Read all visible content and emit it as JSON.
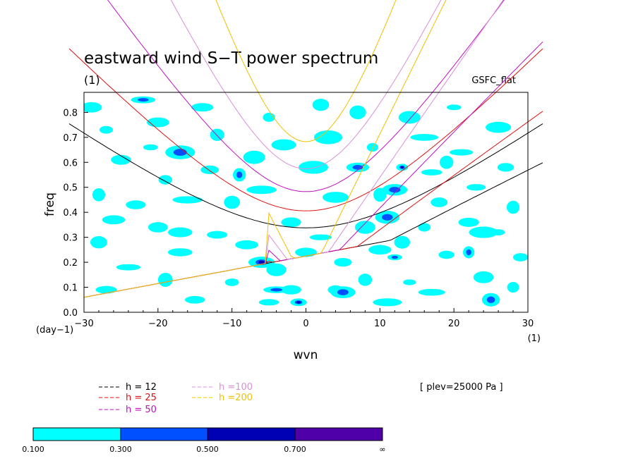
{
  "chart_data": {
    "type": "contour",
    "title": "eastward wind S−T power spectrum",
    "units": "(1)",
    "dataset_label": "GSFC_flat",
    "xlabel": "wvn",
    "x_units": "(1)",
    "ylabel": "freq",
    "y_units": "(day−1)",
    "xlim": [
      -30,
      30
    ],
    "ylim": [
      0,
      0.88
    ],
    "xticks": [
      -30,
      -20,
      -10,
      0,
      10,
      20,
      30
    ],
    "xtick_labels": [
      "−30",
      "−20",
      "−10",
      "0",
      "10",
      "20",
      "30"
    ],
    "yticks": [
      0,
      0.1,
      0.2,
      0.3,
      0.4,
      0.5,
      0.6,
      0.7,
      0.8
    ],
    "ytick_labels": [
      "0.0",
      "0.1",
      "0.2",
      "0.3",
      "0.4",
      "0.5",
      "0.6",
      "0.7",
      "0.8"
    ],
    "annotation": "[ plev=25000 Pa ]",
    "dispersion_curves": [
      {
        "name": "h = 12",
        "h": 12,
        "color": "#000000"
      },
      {
        "name": "h = 25",
        "h": 25,
        "color": "#e01010"
      },
      {
        "name": "h = 50",
        "h": 50,
        "color": "#c010c0"
      },
      {
        "name": "h =100",
        "h": 100,
        "color": "#d890d8"
      },
      {
        "name": "h =200",
        "h": 200,
        "color": "#f0c000"
      }
    ],
    "colorbar": {
      "levels": [
        "0.100",
        "0.300",
        "0.500",
        "0.700",
        "∞"
      ],
      "colors": [
        "#00ffff",
        "#0050ff",
        "#0000b4",
        "#5000a8"
      ]
    },
    "contour_patches": [
      {
        "x": -29,
        "y": 0.82,
        "level": 0
      },
      {
        "x": -27,
        "y": 0.73,
        "level": 0
      },
      {
        "x": -25,
        "y": 0.61,
        "level": 0
      },
      {
        "x": -28,
        "y": 0.47,
        "level": 0
      },
      {
        "x": -26,
        "y": 0.37,
        "level": 0
      },
      {
        "x": -28,
        "y": 0.28,
        "level": 0
      },
      {
        "x": -24,
        "y": 0.18,
        "level": 0
      },
      {
        "x": -27,
        "y": 0.09,
        "level": 0
      },
      {
        "x": -22,
        "y": 0.85,
        "level": 1
      },
      {
        "x": -20,
        "y": 0.76,
        "level": 0
      },
      {
        "x": -21,
        "y": 0.66,
        "level": 0
      },
      {
        "x": -17,
        "y": 0.64,
        "level": 1
      },
      {
        "x": -19,
        "y": 0.53,
        "level": 0
      },
      {
        "x": -16,
        "y": 0.45,
        "level": 0
      },
      {
        "x": -20,
        "y": 0.34,
        "level": 0
      },
      {
        "x": -17,
        "y": 0.24,
        "level": 0
      },
      {
        "x": -19,
        "y": 0.13,
        "level": 0
      },
      {
        "x": -15,
        "y": 0.05,
        "level": 0
      },
      {
        "x": -14,
        "y": 0.82,
        "level": 0
      },
      {
        "x": -12,
        "y": 0.71,
        "level": 0
      },
      {
        "x": -13,
        "y": 0.57,
        "level": 0
      },
      {
        "x": -9,
        "y": 0.55,
        "level": 1
      },
      {
        "x": -10,
        "y": 0.44,
        "level": 0
      },
      {
        "x": -12,
        "y": 0.31,
        "level": 0
      },
      {
        "x": -8,
        "y": 0.27,
        "level": 0
      },
      {
        "x": -6,
        "y": 0.2,
        "level": 2
      },
      {
        "x": -10,
        "y": 0.12,
        "level": 0
      },
      {
        "x": -5,
        "y": 0.04,
        "level": 0
      },
      {
        "x": -5,
        "y": 0.78,
        "level": 0
      },
      {
        "x": -3,
        "y": 0.67,
        "level": 0
      },
      {
        "x": -6,
        "y": 0.49,
        "level": 0
      },
      {
        "x": -2,
        "y": 0.36,
        "level": 0
      },
      {
        "x": -4,
        "y": 0.17,
        "level": 0
      },
      {
        "x": -2,
        "y": 0.09,
        "level": 0
      },
      {
        "x": -1,
        "y": 0.04,
        "level": 2
      },
      {
        "x": -4,
        "y": 0.09,
        "level": 1
      },
      {
        "x": 2,
        "y": 0.83,
        "level": 0
      },
      {
        "x": 3,
        "y": 0.7,
        "level": 0
      },
      {
        "x": 1,
        "y": 0.58,
        "level": 0
      },
      {
        "x": 4,
        "y": 0.46,
        "level": 0
      },
      {
        "x": 2,
        "y": 0.3,
        "level": 0
      },
      {
        "x": 5,
        "y": 0.2,
        "level": 0
      },
      {
        "x": 4,
        "y": 0.09,
        "level": 0
      },
      {
        "x": 5,
        "y": 0.08,
        "level": 1
      },
      {
        "x": 7,
        "y": 0.8,
        "level": 0
      },
      {
        "x": 9,
        "y": 0.66,
        "level": 0
      },
      {
        "x": 7,
        "y": 0.58,
        "level": 1
      },
      {
        "x": 10,
        "y": 0.47,
        "level": 0
      },
      {
        "x": 8,
        "y": 0.34,
        "level": 0
      },
      {
        "x": 10,
        "y": 0.25,
        "level": 0
      },
      {
        "x": 8,
        "y": 0.13,
        "level": 0
      },
      {
        "x": 11,
        "y": 0.04,
        "level": 0
      },
      {
        "x": 13,
        "y": 0.58,
        "level": 2
      },
      {
        "x": 12,
        "y": 0.49,
        "level": 1
      },
      {
        "x": 11,
        "y": 0.38,
        "level": 1
      },
      {
        "x": 13,
        "y": 0.28,
        "level": 0
      },
      {
        "x": 12,
        "y": 0.22,
        "level": 1
      },
      {
        "x": 14,
        "y": 0.12,
        "level": 0
      },
      {
        "x": 14,
        "y": 0.78,
        "level": 0
      },
      {
        "x": 16,
        "y": 0.7,
        "level": 0
      },
      {
        "x": 17,
        "y": 0.56,
        "level": 0
      },
      {
        "x": 18,
        "y": 0.44,
        "level": 0
      },
      {
        "x": 16,
        "y": 0.34,
        "level": 0
      },
      {
        "x": 19,
        "y": 0.23,
        "level": 0
      },
      {
        "x": 17,
        "y": 0.08,
        "level": 0
      },
      {
        "x": 20,
        "y": 0.82,
        "level": 0
      },
      {
        "x": 21,
        "y": 0.64,
        "level": 0
      },
      {
        "x": 23,
        "y": 0.5,
        "level": 0
      },
      {
        "x": 22,
        "y": 0.36,
        "level": 0
      },
      {
        "x": 22,
        "y": 0.24,
        "level": 1
      },
      {
        "x": 24,
        "y": 0.14,
        "level": 0
      },
      {
        "x": 25,
        "y": 0.05,
        "level": 1
      },
      {
        "x": 26,
        "y": 0.74,
        "level": 0
      },
      {
        "x": 27,
        "y": 0.58,
        "level": 0
      },
      {
        "x": 28,
        "y": 0.42,
        "level": 0
      },
      {
        "x": 26,
        "y": 0.32,
        "level": 0
      },
      {
        "x": 29,
        "y": 0.22,
        "level": 0
      },
      {
        "x": 28,
        "y": 0.1,
        "level": 0
      },
      {
        "x": -23,
        "y": 0.43,
        "level": 0
      },
      {
        "x": -7,
        "y": 0.62,
        "level": 0
      },
      {
        "x": 0,
        "y": 0.24,
        "level": 0
      },
      {
        "x": 19,
        "y": 0.6,
        "level": 0
      },
      {
        "x": -17,
        "y": 0.32,
        "level": 0
      },
      {
        "x": 24,
        "y": 0.32,
        "level": 0
      }
    ]
  }
}
